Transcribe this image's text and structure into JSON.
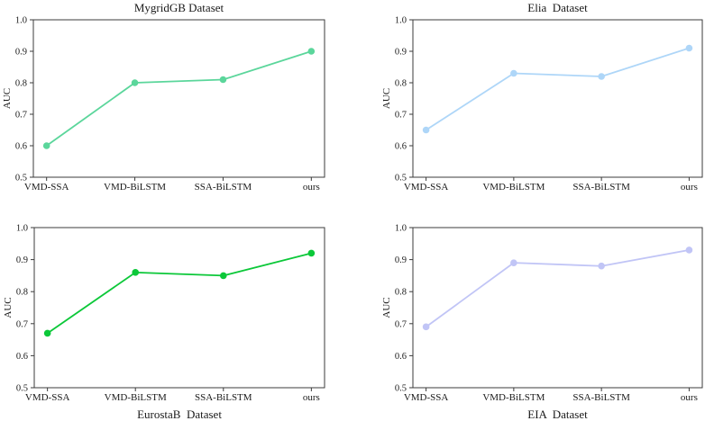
{
  "figure_title": "",
  "axis": {
    "ylabel": "AUC",
    "ylim": [
      0.5,
      1.0
    ],
    "yticks": [
      0.5,
      0.6,
      0.7,
      0.8,
      0.9,
      1.0
    ],
    "categories": [
      "VMD-SSA",
      "VMD-BiLSTM",
      "SSA-BiLSTM",
      "ours"
    ]
  },
  "chart_data": [
    {
      "type": "line",
      "title": "MygridGB Dataset",
      "title_position": "top",
      "xlabel": "",
      "ylabel": "AUC",
      "categories": [
        "VMD-SSA",
        "VMD-BiLSTM",
        "SSA-BiLSTM",
        "ours"
      ],
      "values": [
        0.6,
        0.8,
        0.81,
        0.9
      ],
      "ylim": [
        0.5,
        1.0
      ],
      "yticks": [
        0.5,
        0.6,
        0.7,
        0.8,
        0.9,
        1.0
      ],
      "grid": false,
      "legend": null,
      "marker": "circle",
      "line_color": "#5BD69B"
    },
    {
      "type": "line",
      "title": "Elia  Dataset",
      "title_position": "top",
      "xlabel": "",
      "ylabel": "AUC",
      "categories": [
        "VMD-SSA",
        "VMD-BiLSTM",
        "SSA-BiLSTM",
        "ours"
      ],
      "values": [
        0.65,
        0.83,
        0.82,
        0.91
      ],
      "ylim": [
        0.5,
        1.0
      ],
      "yticks": [
        0.5,
        0.6,
        0.7,
        0.8,
        0.9,
        1.0
      ],
      "grid": false,
      "legend": null,
      "marker": "circle",
      "line_color": "#AED6F8"
    },
    {
      "type": "line",
      "title": "EurostaB  Dataset",
      "title_position": "bottom",
      "xlabel": "EurostaB  Dataset",
      "ylabel": "AUC",
      "categories": [
        "VMD-SSA",
        "VMD-BiLSTM",
        "SSA-BiLSTM",
        "ours"
      ],
      "values": [
        0.67,
        0.86,
        0.85,
        0.92
      ],
      "ylim": [
        0.5,
        1.0
      ],
      "yticks": [
        0.5,
        0.6,
        0.7,
        0.8,
        0.9,
        1.0
      ],
      "grid": false,
      "legend": null,
      "marker": "circle",
      "line_color": "#0CC839"
    },
    {
      "type": "line",
      "title": "EIA  Dataset",
      "title_position": "bottom",
      "xlabel": "EIA  Dataset",
      "ylabel": "AUC",
      "categories": [
        "VMD-SSA",
        "VMD-BiLSTM",
        "SSA-BiLSTM",
        "ours"
      ],
      "values": [
        0.69,
        0.89,
        0.88,
        0.93
      ],
      "ylim": [
        0.5,
        1.0
      ],
      "yticks": [
        0.5,
        0.6,
        0.7,
        0.8,
        0.9,
        1.0
      ],
      "grid": false,
      "legend": null,
      "marker": "circle",
      "line_color": "#C1C5F6"
    }
  ],
  "style": {
    "spine_color": "#3b3b3b",
    "text_color": "#1a1a1a",
    "background": "#ffffff"
  }
}
